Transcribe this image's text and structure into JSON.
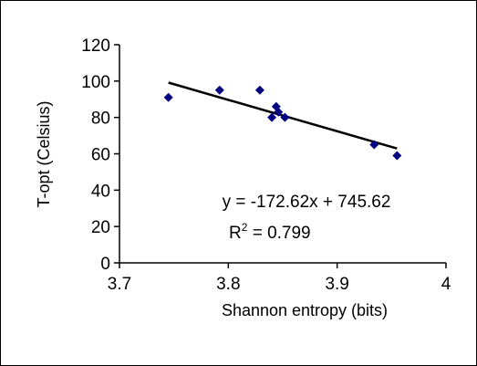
{
  "chart_data": {
    "type": "scatter",
    "title": "",
    "xlabel": "Shannon entropy (bits)",
    "ylabel": "T-opt (Celsius)",
    "xlim": [
      3.7,
      4
    ],
    "ylim": [
      0,
      120
    ],
    "x_ticks": [
      "3.7",
      "3.8",
      "3.9",
      "4"
    ],
    "y_ticks": [
      "0",
      "20",
      "40",
      "60",
      "80",
      "100",
      "120"
    ],
    "grid": false,
    "legend": "none",
    "marker_color": "#000080",
    "line_color": "#000000",
    "points": [
      {
        "x": 3.745,
        "y": 91
      },
      {
        "x": 3.792,
        "y": 95
      },
      {
        "x": 3.829,
        "y": 95
      },
      {
        "x": 3.84,
        "y": 80
      },
      {
        "x": 3.844,
        "y": 86
      },
      {
        "x": 3.846,
        "y": 83
      },
      {
        "x": 3.852,
        "y": 80
      },
      {
        "x": 3.934,
        "y": 65
      },
      {
        "x": 3.955,
        "y": 59
      }
    ],
    "trendline": {
      "slope": -172.62,
      "intercept": 745.62,
      "x_range": [
        3.745,
        3.955
      ]
    },
    "annotation": {
      "equation": "y = -172.62x + 745.62",
      "r2_prefix": "R",
      "r2_sup": "2",
      "r2_value": " = 0.799"
    }
  }
}
